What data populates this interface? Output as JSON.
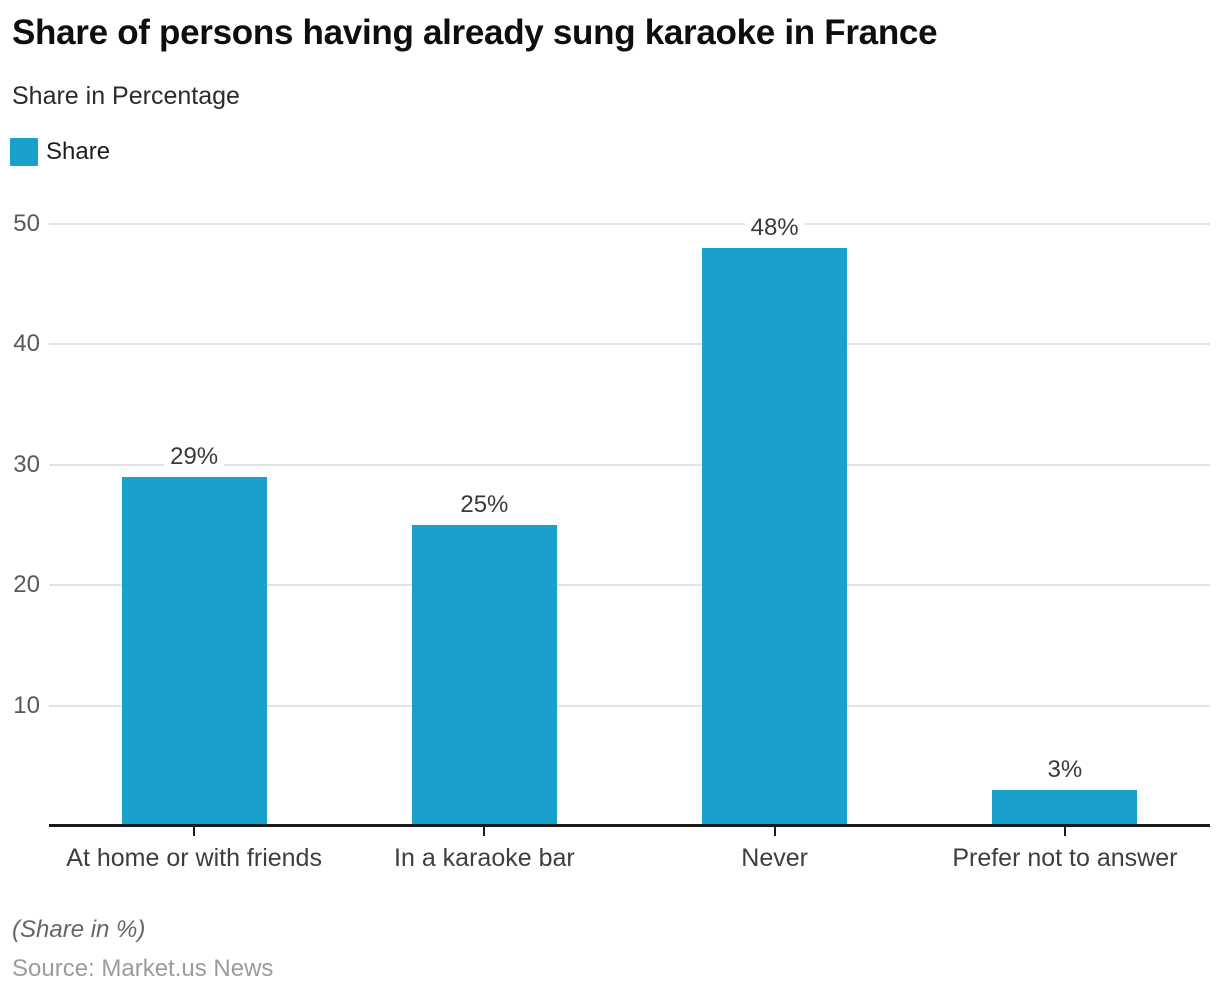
{
  "header": {
    "title": "Share of persons having already sung karaoke in France",
    "subtitle": "Share in Percentage"
  },
  "legend": {
    "label": "Share"
  },
  "chart_data": {
    "type": "bar",
    "title": "Share of persons having already sung karaoke in France",
    "subtitle": "Share in Percentage",
    "categories": [
      "At home or with friends",
      "In a karaoke bar",
      "Never",
      "Prefer not to answer"
    ],
    "series": [
      {
        "name": "Share",
        "values": [
          29,
          25,
          48,
          3
        ]
      }
    ],
    "value_labels": [
      "29%",
      "25%",
      "48%",
      "3%"
    ],
    "xlabel": "",
    "ylabel": "",
    "ylim": [
      0,
      50
    ],
    "yticks": [
      10,
      20,
      30,
      40,
      50
    ],
    "grid": true,
    "legend_position": "top-left",
    "bar_color": "#1aa0cc",
    "grid_color": "#e3e3e3",
    "axis_color": "#1a1a1a"
  },
  "footer": {
    "note": "(Share in %)",
    "source": "Source: Market.us News"
  }
}
